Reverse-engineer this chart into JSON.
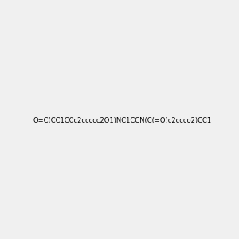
{
  "smiles": "O=C(CC1CCc2ccccc2O1)NC1CCN(C(=O)c2ccco2)CC1",
  "image_size": 300,
  "background_color": "#f0f0f0",
  "atom_color_scheme": "default"
}
